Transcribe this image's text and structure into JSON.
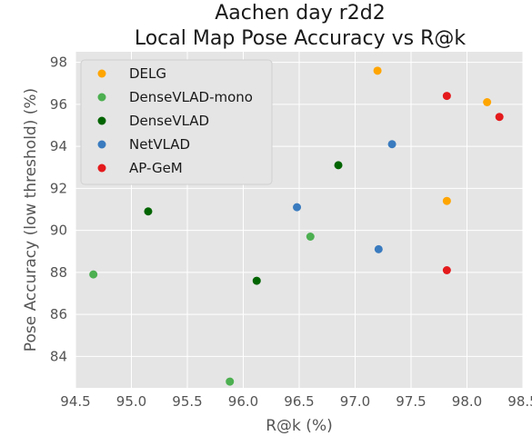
{
  "chart_data": {
    "type": "scatter",
    "title_lines": [
      "Aachen day r2d2",
      "Local Map Pose Accuracy vs R@k"
    ],
    "xlabel": "R@k (%)",
    "ylabel": "Pose Accuracy (low threshold) (%)",
    "xlim": [
      94.5,
      98.5
    ],
    "ylim": [
      82.5,
      98.5
    ],
    "x_ticks": [
      "94.5",
      "95.0",
      "95.5",
      "96.0",
      "96.5",
      "97.0",
      "97.5",
      "98.0",
      "98.5"
    ],
    "y_ticks": [
      "84",
      "86",
      "88",
      "90",
      "92",
      "94",
      "96",
      "98"
    ],
    "grid": true,
    "legend_position": "upper-left",
    "series": [
      {
        "name": "DELG",
        "color": "#FFA500",
        "points": [
          [
            97.2,
            97.6
          ],
          [
            98.18,
            96.1
          ],
          [
            97.82,
            91.4
          ]
        ]
      },
      {
        "name": "DenseVLAD-mono",
        "color": "#4CAF50",
        "points": [
          [
            94.66,
            87.9
          ],
          [
            96.6,
            89.7
          ],
          [
            95.88,
            82.8
          ]
        ]
      },
      {
        "name": "DenseVLAD",
        "color": "#006400",
        "points": [
          [
            95.15,
            90.9
          ],
          [
            96.85,
            93.1
          ],
          [
            96.12,
            87.6
          ]
        ]
      },
      {
        "name": "NetVLAD",
        "color": "#3A7BBF",
        "points": [
          [
            97.33,
            94.1
          ],
          [
            96.48,
            91.1
          ],
          [
            97.21,
            89.1
          ]
        ]
      },
      {
        "name": "AP-GeM",
        "color": "#E41A1C",
        "points": [
          [
            97.82,
            96.4
          ],
          [
            98.29,
            95.4
          ],
          [
            97.82,
            88.1
          ]
        ]
      }
    ]
  }
}
